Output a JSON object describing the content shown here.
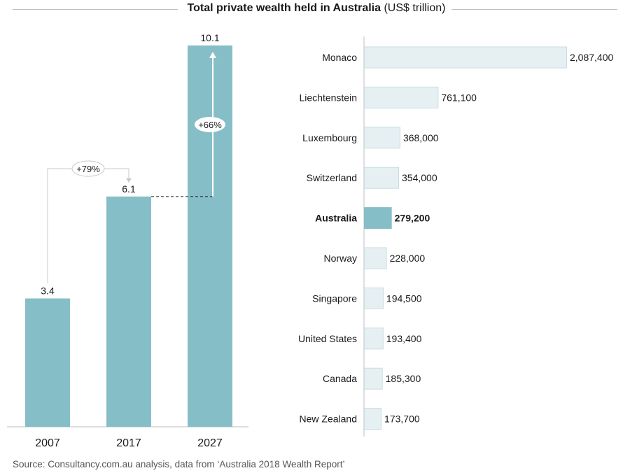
{
  "title": {
    "main": "Total private wealth held in Australia",
    "unit": "(US$ trillion)"
  },
  "source": "Source: Consultancy.com.au analysis, data from ‘Australia 2018 Wealth Report’",
  "colors": {
    "accent": "#86bec8",
    "light_bar": "#e6f0f3",
    "light_bar_border": "#c9dde3",
    "axis": "#bfbfbf"
  },
  "chart_data": [
    {
      "type": "bar",
      "title": "Total private wealth held in Australia (US$ trillion)",
      "categories": [
        "2007",
        "2017",
        "2027"
      ],
      "values": [
        3.4,
        6.1,
        10.1
      ],
      "value_labels": [
        "3.4",
        "6.1",
        "10.1"
      ],
      "ylim": [
        0,
        10.1
      ],
      "annotations": [
        {
          "from": "2007",
          "to": "2017",
          "label": "+79%"
        },
        {
          "from": "2017",
          "to": "2027",
          "label": "+66%"
        }
      ]
    },
    {
      "type": "bar",
      "orientation": "horizontal",
      "categories": [
        "Monaco",
        "Liechtenstein",
        "Luxembourg",
        "Switzerland",
        "Australia",
        "Norway",
        "Singapore",
        "United States",
        "Canada",
        "New Zealand"
      ],
      "values": [
        2087400,
        761100,
        368000,
        354000,
        279200,
        228000,
        194500,
        193400,
        185300,
        173700
      ],
      "value_labels": [
        "2,087,400",
        "761,100",
        "368,000",
        "354,000",
        "279,200",
        "228,000",
        "194,500",
        "193,400",
        "185,300",
        "173,700"
      ],
      "highlight": "Australia",
      "xlim": [
        0,
        2087400
      ]
    }
  ]
}
